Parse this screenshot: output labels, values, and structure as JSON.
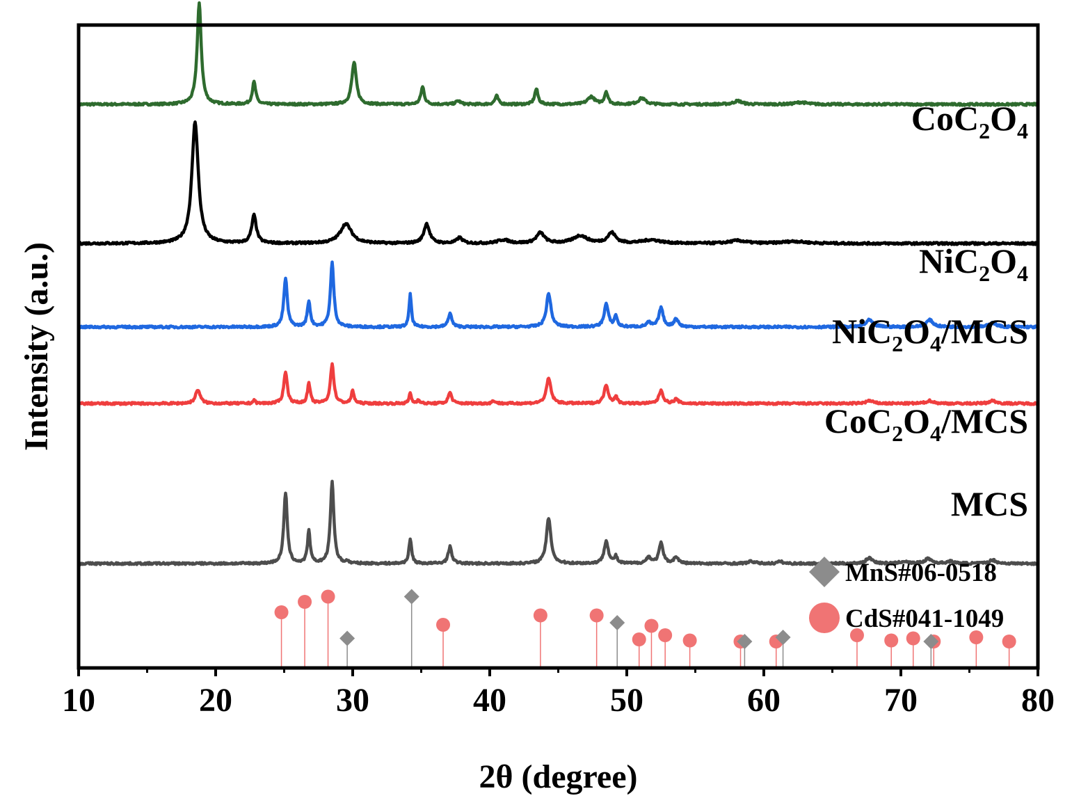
{
  "chart_data": {
    "type": "line",
    "xlabel": "2θ (degree)",
    "ylabel": "Intensity (a.u.)",
    "xlim": [
      10,
      80
    ],
    "x_ticks": [
      10,
      20,
      30,
      40,
      50,
      60,
      70,
      80
    ],
    "x_tick_labels": [
      "10",
      "20",
      "30",
      "40",
      "50",
      "60",
      "70",
      "80"
    ],
    "grid": false,
    "y_scale": "arbitrary units, stacked patterns",
    "series": [
      {
        "name": "CoC2O4",
        "label_main": "CoC",
        "label_parts": [
          {
            "text": "Co",
            "sub": false
          },
          {
            "text": "C",
            "sub": false
          },
          {
            "text": "2",
            "sub": true
          },
          {
            "text": "O",
            "sub": false
          },
          {
            "text": "4",
            "sub": true
          }
        ],
        "color": "#2e6b2e",
        "offset": 8.1,
        "peaks": [
          [
            18.8,
            1.45,
            0.18
          ],
          [
            22.8,
            0.32,
            0.15
          ],
          [
            30.1,
            0.6,
            0.2
          ],
          [
            35.1,
            0.25,
            0.15
          ],
          [
            37.7,
            0.05,
            0.2
          ],
          [
            40.5,
            0.12,
            0.15
          ],
          [
            43.4,
            0.22,
            0.15
          ],
          [
            47.4,
            0.11,
            0.3
          ],
          [
            48.5,
            0.18,
            0.15
          ],
          [
            51.1,
            0.09,
            0.3
          ],
          [
            58.1,
            0.05,
            0.35
          ],
          [
            62.7,
            0.03,
            0.5
          ]
        ]
      },
      {
        "name": "NiC2O4",
        "label_parts": [
          {
            "text": "Ni",
            "sub": false
          },
          {
            "text": "C",
            "sub": false
          },
          {
            "text": "2",
            "sub": true
          },
          {
            "text": "O",
            "sub": false
          },
          {
            "text": "4",
            "sub": true
          }
        ],
        "color": "#000000",
        "offset": 6.1,
        "peaks": [
          [
            18.5,
            1.75,
            0.28
          ],
          [
            22.8,
            0.4,
            0.2
          ],
          [
            29.5,
            0.28,
            0.5
          ],
          [
            35.4,
            0.28,
            0.25
          ],
          [
            37.8,
            0.08,
            0.25
          ],
          [
            41.0,
            0.05,
            0.5
          ],
          [
            43.7,
            0.15,
            0.35
          ],
          [
            46.6,
            0.11,
            0.6
          ],
          [
            48.9,
            0.15,
            0.35
          ],
          [
            51.8,
            0.05,
            0.8
          ],
          [
            58.1,
            0.04,
            0.7
          ],
          [
            62.2,
            0.03,
            1.0
          ]
        ]
      },
      {
        "name": "NiC2O4/MCS",
        "label_parts": [
          {
            "text": "Ni",
            "sub": false
          },
          {
            "text": "C",
            "sub": false
          },
          {
            "text": "2",
            "sub": true
          },
          {
            "text": "O",
            "sub": false
          },
          {
            "text": "4",
            "sub": true
          },
          {
            "text": "/MCS",
            "sub": false
          }
        ],
        "color": "#1f68e0",
        "offset": 4.9,
        "peaks": [
          [
            25.1,
            0.7,
            0.15
          ],
          [
            26.8,
            0.37,
            0.13
          ],
          [
            28.5,
            0.92,
            0.15
          ],
          [
            34.2,
            0.48,
            0.1
          ],
          [
            37.1,
            0.2,
            0.15
          ],
          [
            44.3,
            0.48,
            0.2
          ],
          [
            48.5,
            0.33,
            0.18
          ],
          [
            49.2,
            0.16,
            0.12
          ],
          [
            51.6,
            0.06,
            0.2
          ],
          [
            52.5,
            0.28,
            0.18
          ],
          [
            53.6,
            0.12,
            0.18
          ],
          [
            67.7,
            0.1,
            0.3
          ],
          [
            72.1,
            0.1,
            0.3
          ],
          [
            76.7,
            0.06,
            0.3
          ]
        ]
      },
      {
        "name": "CoC2O4/MCS",
        "label_parts": [
          {
            "text": "Co",
            "sub": false
          },
          {
            "text": "C",
            "sub": false
          },
          {
            "text": "2",
            "sub": true
          },
          {
            "text": "O",
            "sub": false
          },
          {
            "text": "4",
            "sub": true
          },
          {
            "text": "/MCS",
            "sub": false
          }
        ],
        "color": "#ef3e3e",
        "offset": 3.8,
        "peaks": [
          [
            18.7,
            0.2,
            0.2
          ],
          [
            22.8,
            0.05,
            0.1
          ],
          [
            25.1,
            0.46,
            0.15
          ],
          [
            26.8,
            0.29,
            0.12
          ],
          [
            28.5,
            0.57,
            0.15
          ],
          [
            30.0,
            0.18,
            0.12
          ],
          [
            34.2,
            0.15,
            0.1
          ],
          [
            34.8,
            0.06,
            0.1
          ],
          [
            37.1,
            0.16,
            0.15
          ],
          [
            40.3,
            0.04,
            0.15
          ],
          [
            44.3,
            0.36,
            0.2
          ],
          [
            48.5,
            0.27,
            0.18
          ],
          [
            49.2,
            0.1,
            0.12
          ],
          [
            52.5,
            0.19,
            0.18
          ],
          [
            53.6,
            0.06,
            0.18
          ],
          [
            67.7,
            0.04,
            0.3
          ],
          [
            72.1,
            0.04,
            0.3
          ],
          [
            76.7,
            0.04,
            0.3
          ]
        ]
      },
      {
        "name": "MCS",
        "label_parts": [
          {
            "text": "MCS",
            "sub": false
          }
        ],
        "color": "#4d4d4d",
        "offset": 1.5,
        "peaks": [
          [
            25.1,
            1.02,
            0.15
          ],
          [
            26.8,
            0.46,
            0.12
          ],
          [
            28.5,
            1.18,
            0.15
          ],
          [
            29.6,
            0.03,
            0.1
          ],
          [
            34.2,
            0.35,
            0.12
          ],
          [
            37.1,
            0.24,
            0.16
          ],
          [
            44.3,
            0.65,
            0.2
          ],
          [
            48.5,
            0.33,
            0.18
          ],
          [
            49.2,
            0.1,
            0.12
          ],
          [
            51.6,
            0.09,
            0.2
          ],
          [
            52.5,
            0.29,
            0.18
          ],
          [
            53.6,
            0.09,
            0.2
          ],
          [
            59.1,
            0.03,
            0.3
          ],
          [
            61.2,
            0.03,
            0.2
          ],
          [
            67.7,
            0.08,
            0.3
          ],
          [
            70.2,
            0.03,
            0.3
          ],
          [
            72.0,
            0.07,
            0.3
          ],
          [
            73.6,
            0.03,
            0.3
          ],
          [
            76.7,
            0.05,
            0.3
          ]
        ]
      }
    ],
    "references": [
      {
        "name": "MnS#06-0518",
        "marker": "diamond",
        "color": "#8c8c8c",
        "lines": [
          [
            29.6,
            0.15
          ],
          [
            34.3,
            0.55
          ],
          [
            49.3,
            0.3
          ],
          [
            58.6,
            0.12
          ],
          [
            61.4,
            0.16
          ],
          [
            72.2,
            0.12
          ]
        ]
      },
      {
        "name": "CdS#041-1049",
        "marker": "circle",
        "color": "#f07474",
        "lines": [
          [
            24.8,
            0.4
          ],
          [
            26.5,
            0.5
          ],
          [
            28.2,
            0.55
          ],
          [
            36.6,
            0.28
          ],
          [
            43.7,
            0.37
          ],
          [
            47.8,
            0.37
          ],
          [
            50.9,
            0.14
          ],
          [
            51.8,
            0.27
          ],
          [
            52.8,
            0.18
          ],
          [
            54.6,
            0.13
          ],
          [
            58.3,
            0.12
          ],
          [
            60.9,
            0.12
          ],
          [
            66.8,
            0.18
          ],
          [
            69.3,
            0.13
          ],
          [
            70.9,
            0.15
          ],
          [
            72.4,
            0.12
          ],
          [
            75.5,
            0.16
          ],
          [
            77.9,
            0.12
          ]
        ]
      }
    ]
  }
}
